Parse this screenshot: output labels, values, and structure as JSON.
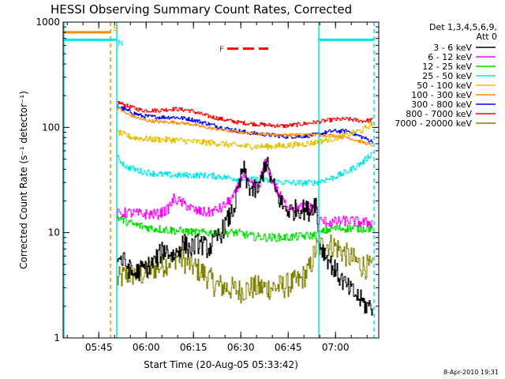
{
  "chart_data": {
    "type": "line",
    "title": "HESSI Observing Summary Count Rates, Corrected",
    "xlabel": "Start Time (20-Aug-05 05:33:42)",
    "ylabel": "Corrected Count Rate (s⁻¹ detector⁻¹)",
    "y_scale": "log",
    "ylim": [
      1,
      1000
    ],
    "y_ticks": [
      {
        "value": 1,
        "label": "1"
      },
      {
        "value": 10,
        "label": "10"
      },
      {
        "value": 100,
        "label": "100"
      },
      {
        "value": 1000,
        "label": "1000"
      }
    ],
    "x_unit": "minutes",
    "xlim": [
      0,
      100
    ],
    "x_ticks": [
      {
        "value": 11.3,
        "label": "05:45"
      },
      {
        "value": 26.3,
        "label": "06:00"
      },
      {
        "value": 41.3,
        "label": "06:15"
      },
      {
        "value": 56.3,
        "label": "06:30"
      },
      {
        "value": 71.3,
        "label": "06:45"
      },
      {
        "value": 86.3,
        "label": "07:00"
      }
    ],
    "legend_header": [
      "Det 1,3,4,5,6,9,",
      "Att 0"
    ],
    "legend_position": "right",
    "stamp": "8-Apr-2010 19:31",
    "flags": {
      "S": {
        "label": "S",
        "color": "#ff8c00",
        "x_range": [
          0,
          15.0
        ],
        "value": 800
      },
      "N": {
        "label": "N",
        "color": "#00e5e5",
        "x_range": [
          0,
          17.0
        ],
        "value": 680
      },
      "F": {
        "label": "F",
        "color": "#ff0000",
        "x_range": [
          52,
          65
        ],
        "value": 560
      }
    },
    "markers": [
      {
        "name": "S",
        "color": "#ff8c00",
        "x": 15.0,
        "style": "dashed"
      },
      {
        "name": "N",
        "color": "#00e5e5",
        "x": 17.0,
        "style": "solid"
      },
      {
        "name": "N",
        "color": "#00e5e5",
        "x": 81.0,
        "style": "solid"
      },
      {
        "name": "N",
        "color": "#00e5e5",
        "x": 98.5,
        "style": "dashed"
      }
    ],
    "series": [
      {
        "name": "3 - 6 keV",
        "color": "#000000",
        "noise": 0.1,
        "points": [
          [
            17,
            6
          ],
          [
            20,
            5
          ],
          [
            22,
            4
          ],
          [
            25,
            4.5
          ],
          [
            28,
            5
          ],
          [
            32,
            7
          ],
          [
            35,
            6
          ],
          [
            38,
            8
          ],
          [
            40,
            7
          ],
          [
            43,
            8
          ],
          [
            46,
            7
          ],
          [
            50,
            10
          ],
          [
            54,
            17
          ],
          [
            56,
            30
          ],
          [
            57,
            42
          ],
          [
            58,
            30
          ],
          [
            60,
            25
          ],
          [
            62,
            26
          ],
          [
            63,
            35
          ],
          [
            64,
            48
          ],
          [
            65,
            40
          ],
          [
            66,
            30
          ],
          [
            68,
            22
          ],
          [
            70,
            17
          ],
          [
            72,
            16
          ],
          [
            75,
            17
          ],
          [
            78,
            16
          ],
          [
            80,
            20
          ],
          [
            81,
            8
          ],
          [
            84,
            5.5
          ],
          [
            87,
            4
          ],
          [
            90,
            3
          ],
          [
            93,
            2.5
          ],
          [
            96,
            2
          ],
          [
            98,
            2
          ]
        ]
      },
      {
        "name": "6 - 12 keV",
        "color": "#ff00ff",
        "noise": 0.05,
        "points": [
          [
            17,
            15
          ],
          [
            20,
            15.5
          ],
          [
            25,
            15
          ],
          [
            30,
            15
          ],
          [
            33,
            16.5
          ],
          [
            35,
            21
          ],
          [
            38,
            19
          ],
          [
            42,
            16
          ],
          [
            46,
            15.5
          ],
          [
            50,
            17
          ],
          [
            54,
            22
          ],
          [
            56,
            30
          ],
          [
            57,
            37
          ],
          [
            58,
            30
          ],
          [
            60,
            28
          ],
          [
            62,
            28
          ],
          [
            63,
            38
          ],
          [
            64,
            47
          ],
          [
            65,
            40
          ],
          [
            66,
            32
          ],
          [
            68,
            24
          ],
          [
            70,
            19
          ],
          [
            73,
            17
          ],
          [
            76,
            17.5
          ],
          [
            80,
            17
          ],
          [
            81,
            13
          ],
          [
            85,
            12.5
          ],
          [
            90,
            13
          ],
          [
            95,
            12.5
          ],
          [
            98,
            12.5
          ]
        ]
      },
      {
        "name": "12 - 25 keV",
        "color": "#00dd00",
        "noise": 0.04,
        "points": [
          [
            17,
            14
          ],
          [
            22,
            12
          ],
          [
            28,
            11
          ],
          [
            35,
            10.5
          ],
          [
            42,
            10
          ],
          [
            48,
            10
          ],
          [
            55,
            10
          ],
          [
            60,
            9.2
          ],
          [
            65,
            9
          ],
          [
            70,
            9
          ],
          [
            75,
            9.2
          ],
          [
            80,
            9.5
          ],
          [
            85,
            11
          ],
          [
            90,
            11
          ],
          [
            95,
            11
          ],
          [
            98,
            11
          ]
        ]
      },
      {
        "name": "25 - 50 keV",
        "color": "#00e5e5",
        "noise": 0.03,
        "points": [
          [
            17,
            52
          ],
          [
            20,
            42
          ],
          [
            25,
            38
          ],
          [
            30,
            36
          ],
          [
            35,
            35
          ],
          [
            40,
            35
          ],
          [
            45,
            35
          ],
          [
            50,
            34
          ],
          [
            55,
            32.5
          ],
          [
            60,
            32
          ],
          [
            65,
            31
          ],
          [
            70,
            30
          ],
          [
            75,
            29.5
          ],
          [
            80,
            30
          ],
          [
            85,
            33
          ],
          [
            90,
            38
          ],
          [
            95,
            47
          ],
          [
            98,
            58
          ]
        ]
      },
      {
        "name": "50 - 100 keV",
        "color": "#e5c000",
        "noise": 0.03,
        "points": [
          [
            17,
            90
          ],
          [
            22,
            80
          ],
          [
            28,
            77
          ],
          [
            35,
            76
          ],
          [
            42,
            73
          ],
          [
            50,
            70
          ],
          [
            55,
            67
          ],
          [
            60,
            66
          ],
          [
            65,
            66
          ],
          [
            70,
            67
          ],
          [
            75,
            69
          ],
          [
            80,
            72
          ],
          [
            85,
            78
          ],
          [
            90,
            85
          ],
          [
            95,
            95
          ],
          [
            98,
            110
          ]
        ]
      },
      {
        "name": "100 - 300 keV",
        "color": "#ff8c00",
        "noise": 0.015,
        "points": [
          [
            17,
            155
          ],
          [
            20,
            135
          ],
          [
            25,
            118
          ],
          [
            30,
            113
          ],
          [
            35,
            112
          ],
          [
            40,
            108
          ],
          [
            45,
            100
          ],
          [
            50,
            95
          ],
          [
            55,
            90
          ],
          [
            60,
            88
          ],
          [
            65,
            86
          ],
          [
            70,
            85
          ],
          [
            75,
            85
          ],
          [
            80,
            85
          ],
          [
            85,
            84
          ],
          [
            90,
            80
          ],
          [
            95,
            72
          ],
          [
            98,
            67
          ]
        ]
      },
      {
        "name": "300 - 800 keV",
        "color": "#0000ff",
        "noise": 0.02,
        "points": [
          [
            17,
            160
          ],
          [
            20,
            145
          ],
          [
            25,
            128
          ],
          [
            30,
            125
          ],
          [
            35,
            125
          ],
          [
            40,
            120
          ],
          [
            45,
            110
          ],
          [
            50,
            100
          ],
          [
            55,
            93
          ],
          [
            60,
            88
          ],
          [
            65,
            85
          ],
          [
            70,
            82
          ],
          [
            75,
            82
          ],
          [
            80,
            85
          ],
          [
            85,
            92
          ],
          [
            90,
            92
          ],
          [
            95,
            80
          ],
          [
            98,
            73
          ]
        ]
      },
      {
        "name": "800 - 7000 keV",
        "color": "#ff0000",
        "noise": 0.02,
        "points": [
          [
            17,
            175
          ],
          [
            20,
            160
          ],
          [
            25,
            145
          ],
          [
            30,
            145
          ],
          [
            35,
            150
          ],
          [
            40,
            145
          ],
          [
            45,
            130
          ],
          [
            50,
            120
          ],
          [
            55,
            112
          ],
          [
            60,
            108
          ],
          [
            65,
            105
          ],
          [
            70,
            103
          ],
          [
            75,
            107
          ],
          [
            80,
            112
          ],
          [
            85,
            118
          ],
          [
            90,
            120
          ],
          [
            95,
            115
          ],
          [
            98,
            118
          ]
        ]
      },
      {
        "name": "7000 - 20000 keV",
        "color": "#808000",
        "noise": 0.12,
        "points": [
          [
            17,
            3.5
          ],
          [
            20,
            4
          ],
          [
            25,
            4
          ],
          [
            28,
            4.5
          ],
          [
            32,
            5
          ],
          [
            36,
            6
          ],
          [
            40,
            5
          ],
          [
            45,
            4
          ],
          [
            48,
            3.2
          ],
          [
            52,
            3
          ],
          [
            56,
            2.8
          ],
          [
            60,
            3
          ],
          [
            65,
            3
          ],
          [
            70,
            3.1
          ],
          [
            75,
            3.5
          ],
          [
            78,
            4.5
          ],
          [
            80,
            7
          ],
          [
            83,
            7.8
          ],
          [
            86,
            7.5
          ],
          [
            90,
            6
          ],
          [
            94,
            5
          ],
          [
            98,
            4.5
          ]
        ]
      }
    ]
  }
}
